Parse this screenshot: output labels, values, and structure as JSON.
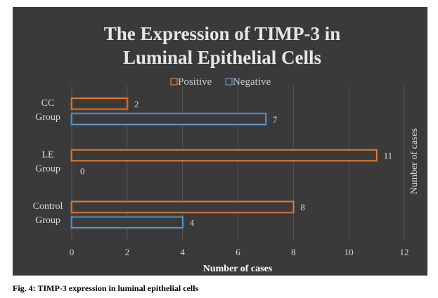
{
  "chart_data": {
    "type": "bar",
    "orientation": "horizontal",
    "title_lines": [
      "The Expression of TIMP-3 in",
      "Luminal Epithelial Cells"
    ],
    "categories": [
      {
        "lines": [
          "CC",
          "Group"
        ]
      },
      {
        "lines": [
          "LE",
          "Group"
        ]
      },
      {
        "lines": [
          "Control",
          "Group"
        ]
      }
    ],
    "series": [
      {
        "name": "Positive",
        "color": "#ed7d31",
        "values": [
          2,
          11,
          8
        ]
      },
      {
        "name": "Negative",
        "color": "#5b9bd5",
        "values": [
          7,
          0,
          4
        ]
      }
    ],
    "xlabel": "Number of cases",
    "ylabel": "Number of cases",
    "xlim": [
      0,
      12
    ],
    "xticks": [
      "0",
      "2",
      "4",
      "6",
      "8",
      "10",
      "12"
    ],
    "grid": true,
    "legend": "top"
  },
  "caption": "Fig. 4: TIMP-3 expression in luminal epithelial cells"
}
